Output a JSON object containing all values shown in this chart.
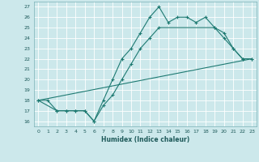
{
  "xlabel": "Humidex (Indice chaleur)",
  "xlim": [
    -0.5,
    23.5
  ],
  "ylim": [
    15.5,
    27.5
  ],
  "yticks": [
    16,
    17,
    18,
    19,
    20,
    21,
    22,
    23,
    24,
    25,
    26,
    27
  ],
  "xticks": [
    0,
    1,
    2,
    3,
    4,
    5,
    6,
    7,
    8,
    9,
    10,
    11,
    12,
    13,
    14,
    15,
    16,
    17,
    18,
    19,
    20,
    21,
    22,
    23
  ],
  "bg_color": "#cce8eb",
  "grid_color": "#b0d8dc",
  "line_color": "#1e7a72",
  "line1_x": [
    0,
    1,
    2,
    3,
    4,
    5,
    6,
    7,
    8,
    9,
    10,
    11,
    12,
    13,
    14,
    15,
    16,
    17,
    18,
    19,
    20,
    21,
    22,
    23
  ],
  "line1_y": [
    18,
    18,
    17,
    17,
    17,
    17,
    16,
    18,
    20,
    22,
    23,
    24.5,
    26,
    27,
    25.5,
    26,
    26,
    25.5,
    26,
    25,
    24,
    23,
    22,
    22
  ],
  "line2_x": [
    0,
    2,
    3,
    4,
    5,
    6,
    7,
    8,
    9,
    10,
    11,
    12,
    13,
    19,
    20,
    21,
    22,
    23
  ],
  "line2_y": [
    18,
    17,
    17,
    17,
    17,
    16,
    17.5,
    18.5,
    20,
    21.5,
    23,
    24,
    25,
    25,
    24.5,
    23,
    22,
    22
  ],
  "line3_x": [
    0,
    23
  ],
  "line3_y": [
    18,
    22
  ]
}
